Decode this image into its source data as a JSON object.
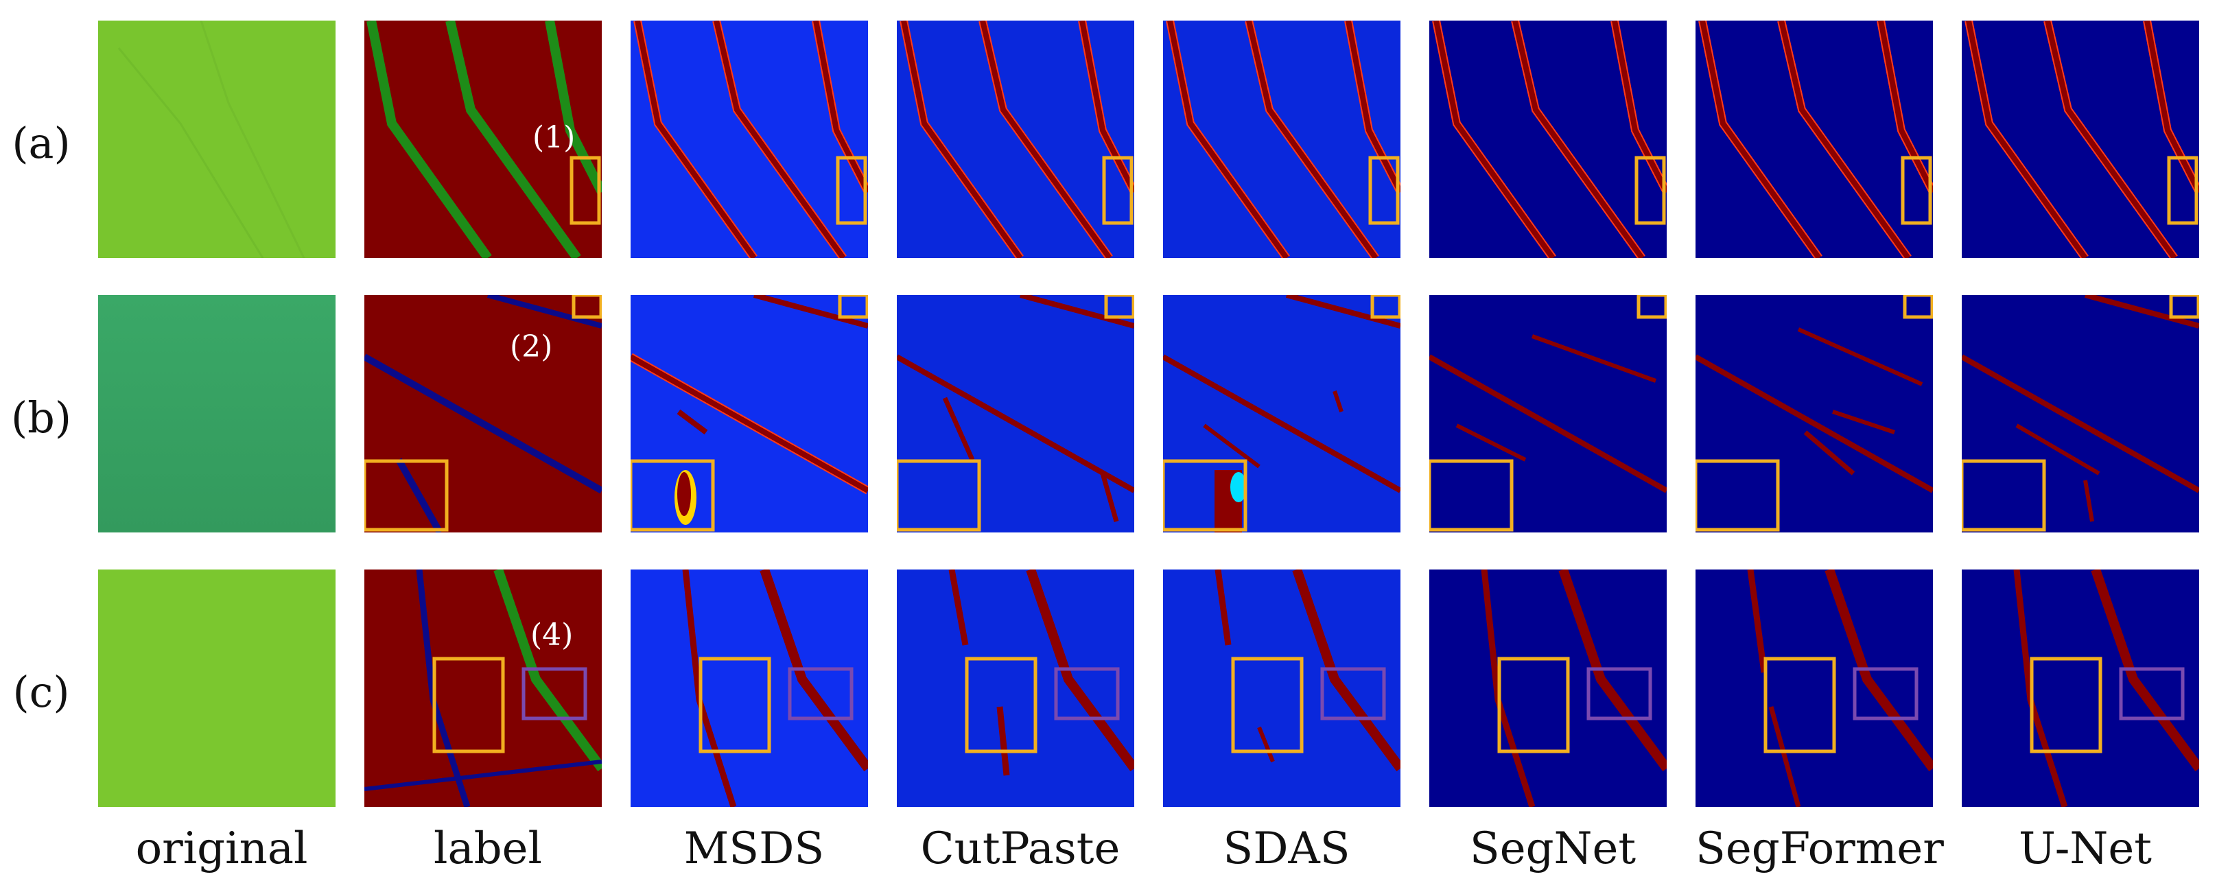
{
  "rows": [
    {
      "label": "(a)",
      "annotation": "(1)"
    },
    {
      "label": "(b)",
      "annotation": "(2)"
    },
    {
      "label": "(c)",
      "annotation": "(4)"
    }
  ],
  "columns": [
    "original",
    "label",
    "MSDS",
    "CutPaste",
    "SDAS",
    "SegNet",
    "SegFormer",
    "U-Net"
  ],
  "colors": {
    "original_a": "#79c52e",
    "original_b": "#3aa867",
    "original_c": "#7bc72f",
    "label_background": "#800000",
    "label_green_line": "#1e8c18",
    "label_blue_line": "#0a0a8a",
    "map_blue_light": "#0f2ff0",
    "map_blue_dark": "#00008f",
    "crack_red": "#8b0000",
    "crack_edge": "#ff3a1a",
    "highlight_box_orange": "#f2b020",
    "highlight_box_purple": "#7a4ab0"
  }
}
